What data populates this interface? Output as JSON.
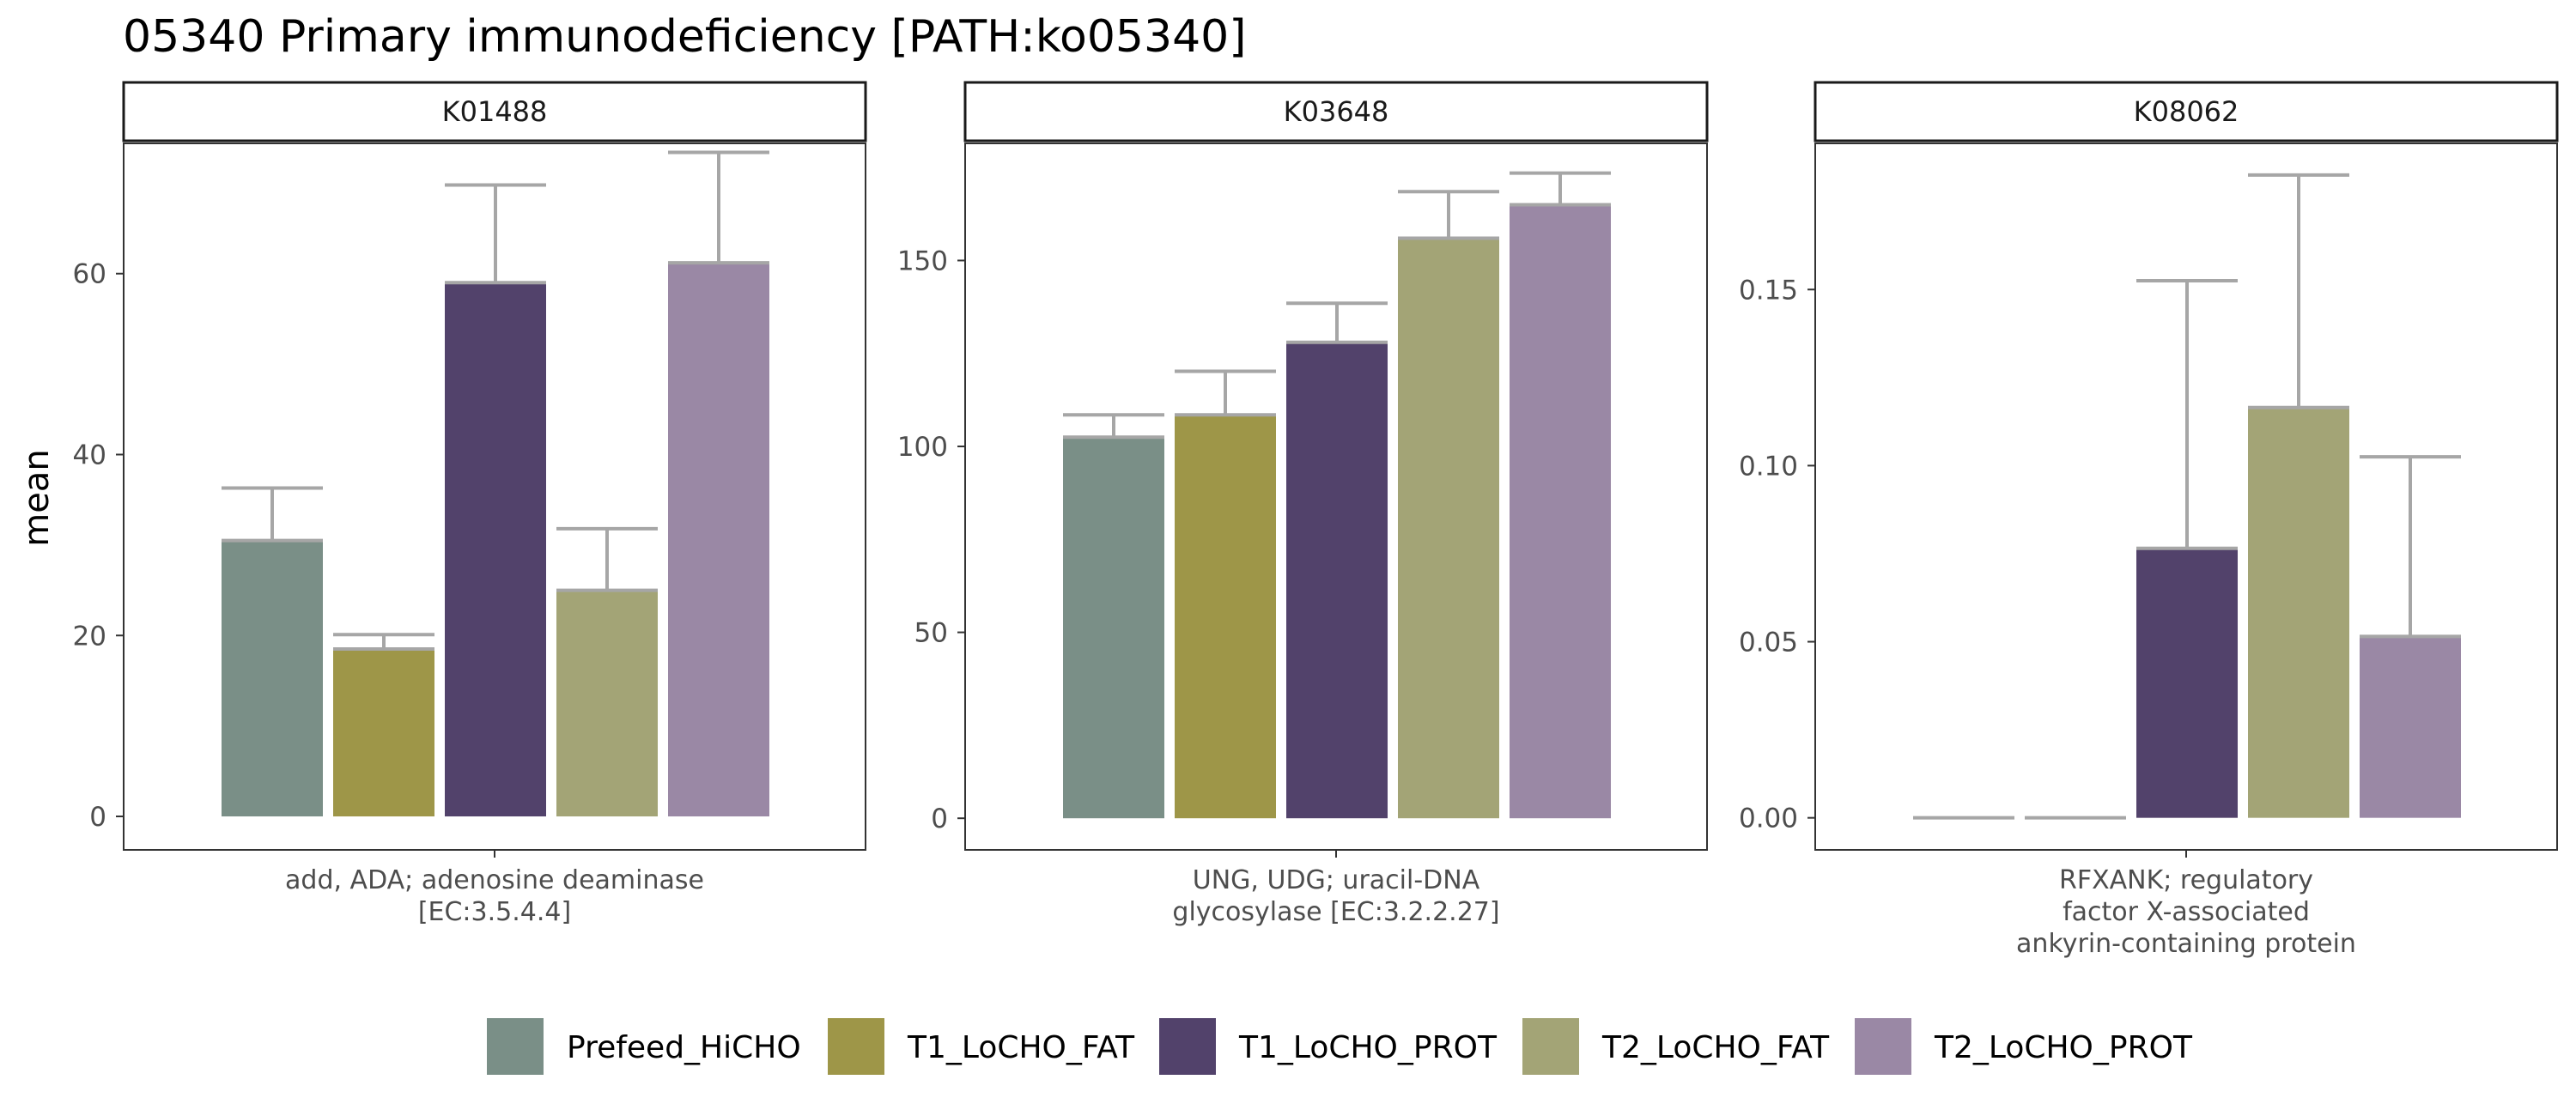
{
  "title": "05340 Primary immunodeficiency [PATH:ko05340]",
  "ylabel": "mean",
  "colors": {
    "Prefeed_HiCHO": "#7a8f87",
    "T1_LoCHO_FAT": "#9e9648",
    "T1_LoCHO_PROT": "#52426b",
    "T2_LoCHO_FAT": "#a3a476",
    "T2_LoCHO_PROT": "#9a88a5",
    "errorbar": "#a6a6a6"
  },
  "legend": [
    "Prefeed_HiCHO",
    "T1_LoCHO_FAT",
    "T1_LoCHO_PROT",
    "T2_LoCHO_FAT",
    "T2_LoCHO_PROT"
  ],
  "chart_data": [
    {
      "type": "bar",
      "facet": "K01488",
      "category_label": [
        "add, ADA; adenosine deaminase",
        "[EC:3.5.4.4]"
      ],
      "ylim": [
        -3.7,
        74.4
      ],
      "yticks": [
        0,
        20,
        40,
        60
      ],
      "series": [
        {
          "name": "Prefeed_HiCHO",
          "value": 30.5,
          "err_high": 36.3
        },
        {
          "name": "T1_LoCHO_FAT",
          "value": 18.5,
          "err_high": 20.1
        },
        {
          "name": "T1_LoCHO_PROT",
          "value": 59.0,
          "err_high": 69.8
        },
        {
          "name": "T2_LoCHO_FAT",
          "value": 25.0,
          "err_high": 31.8
        },
        {
          "name": "T2_LoCHO_PROT",
          "value": 61.2,
          "err_high": 73.4
        }
      ]
    },
    {
      "type": "bar",
      "facet": "K03648",
      "category_label": [
        "UNG, UDG; uracil-DNA",
        "glycosylase [EC:3.2.2.27]"
      ],
      "ylim": [
        -8.5,
        181.5
      ],
      "yticks": [
        0,
        50,
        100,
        150
      ],
      "series": [
        {
          "name": "Prefeed_HiCHO",
          "value": 102.5,
          "err_high": 108.5
        },
        {
          "name": "T1_LoCHO_FAT",
          "value": 108.5,
          "err_high": 120.2
        },
        {
          "name": "T1_LoCHO_PROT",
          "value": 128.0,
          "err_high": 138.5
        },
        {
          "name": "T2_LoCHO_FAT",
          "value": 156.0,
          "err_high": 168.5
        },
        {
          "name": "T2_LoCHO_PROT",
          "value": 165.0,
          "err_high": 173.5
        }
      ]
    },
    {
      "type": "bar",
      "facet": "K08062",
      "category_label": [
        "RFXANK; regulatory",
        "factor X-associated",
        "ankyrin-containing protein"
      ],
      "ylim": [
        -0.0091,
        0.1915
      ],
      "yticks": [
        0.0,
        0.05,
        0.1,
        0.15
      ],
      "ytick_labels": [
        "0.00",
        "0.05",
        "0.10",
        "0.15"
      ],
      "series": [
        {
          "name": "Prefeed_HiCHO",
          "value": 0.0,
          "err_high": 0.0
        },
        {
          "name": "T1_LoCHO_FAT",
          "value": 0.0,
          "err_high": 0.0
        },
        {
          "name": "T1_LoCHO_PROT",
          "value": 0.0765,
          "err_high": 0.1525
        },
        {
          "name": "T2_LoCHO_FAT",
          "value": 0.1165,
          "err_high": 0.1825
        },
        {
          "name": "T2_LoCHO_PROT",
          "value": 0.0515,
          "err_high": 0.1025
        }
      ]
    }
  ]
}
